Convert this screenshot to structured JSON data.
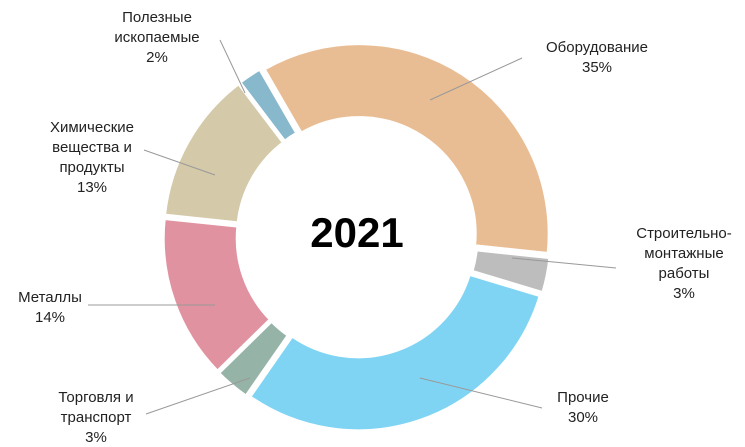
{
  "chart_data": {
    "type": "donut",
    "center_label": "2021",
    "categories": [
      [
        "Оборудование"
      ],
      [
        "Строительно-",
        "монтажные",
        "работы"
      ],
      [
        "Прочие"
      ],
      [
        "Торговля и",
        "транспорт"
      ],
      [
        "Металлы"
      ],
      [
        "Химические",
        "вещества и",
        "продукты"
      ],
      [
        "Полезные",
        "ископаемые"
      ]
    ],
    "values": [
      35,
      3,
      30,
      3,
      14,
      13,
      2
    ],
    "value_labels": [
      "35%",
      "3%",
      "30%",
      "3%",
      "14%",
      "13%",
      "2%"
    ],
    "colors": [
      "#e9bd94",
      "#bdbdbd",
      "#80d4f3",
      "#95b3a6",
      "#e192a0",
      "#d4c9a8",
      "#87b8cc"
    ]
  }
}
